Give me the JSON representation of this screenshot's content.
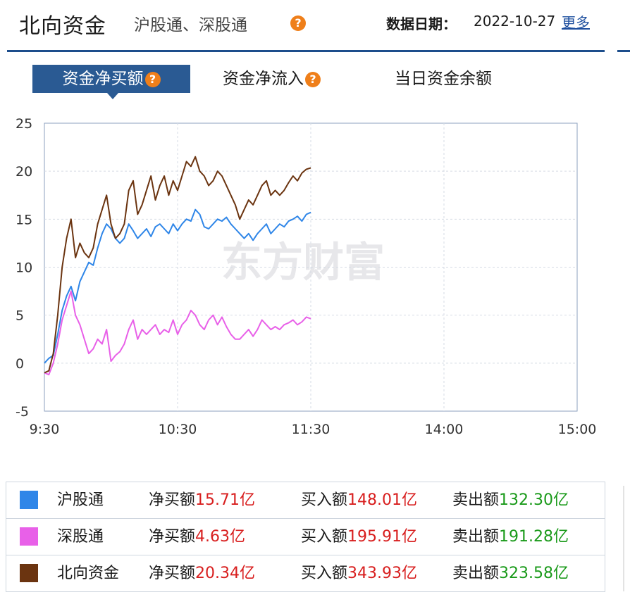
{
  "header": {
    "title": "北向资金",
    "subtitle": "沪股通、深股通",
    "date_label": "数据日期：",
    "date_value": "2022-10-27",
    "more_link": "更多",
    "help_glyph": "?"
  },
  "tabs": [
    {
      "label": "资金净买额",
      "active": true,
      "help": true
    },
    {
      "label": "资金净流入",
      "active": false,
      "help": true
    },
    {
      "label": "当日资金余额",
      "active": false,
      "help": false
    }
  ],
  "watermark": "东方财富",
  "chart_data": {
    "type": "line",
    "title": "",
    "xlabel": "",
    "ylabel": "",
    "x_ticks": [
      "9:30",
      "10:30",
      "11:30",
      "14:00",
      "15:00"
    ],
    "y_ticks": [
      -5,
      0,
      5,
      10,
      15,
      20,
      25
    ],
    "ylim": [
      -5,
      25
    ],
    "grid": true,
    "colors": {
      "沪股通": "#2f86e8",
      "深股通": "#e860e8",
      "北向资金": "#6b3410"
    },
    "series": [
      {
        "name": "沪股通",
        "color": "#2f86e8",
        "times": [
          "9:30",
          "9:32",
          "9:34",
          "9:36",
          "9:38",
          "9:40",
          "9:42",
          "9:44",
          "9:46",
          "9:48",
          "9:50",
          "9:52",
          "9:54",
          "9:56",
          "9:58",
          "10:00",
          "10:02",
          "10:04",
          "10:06",
          "10:08",
          "10:10",
          "10:12",
          "10:14",
          "10:16",
          "10:18",
          "10:20",
          "10:22",
          "10:24",
          "10:26",
          "10:28",
          "10:30",
          "10:32",
          "10:34",
          "10:36",
          "10:38",
          "10:40",
          "10:42",
          "10:44",
          "10:46",
          "10:48",
          "10:50",
          "10:52",
          "10:54",
          "10:56",
          "10:58",
          "11:00",
          "11:02",
          "11:04",
          "11:06",
          "11:08",
          "11:10",
          "11:12",
          "11:14",
          "11:16",
          "11:18",
          "11:20",
          "11:22",
          "11:24",
          "11:26",
          "11:28",
          "11:30"
        ],
        "values": [
          0.0,
          0.5,
          0.8,
          3.0,
          5.5,
          7.0,
          8.0,
          6.5,
          8.5,
          9.5,
          10.5,
          10.2,
          12.0,
          13.5,
          14.5,
          14.0,
          13.0,
          12.5,
          13.0,
          14.5,
          13.8,
          13.0,
          13.5,
          14.0,
          13.2,
          14.2,
          14.5,
          14.0,
          13.5,
          14.5,
          13.8,
          14.5,
          15.0,
          14.8,
          16.0,
          15.5,
          14.2,
          14.0,
          14.5,
          15.0,
          14.8,
          15.2,
          14.5,
          14.0,
          13.5,
          13.0,
          13.5,
          12.8,
          13.5,
          14.0,
          14.5,
          13.5,
          14.0,
          14.5,
          14.2,
          14.8,
          15.0,
          15.3,
          14.8,
          15.5,
          15.71
        ]
      },
      {
        "name": "深股通",
        "color": "#e860e8",
        "times": [
          "9:30",
          "9:32",
          "9:34",
          "9:36",
          "9:38",
          "9:40",
          "9:42",
          "9:44",
          "9:46",
          "9:48",
          "9:50",
          "9:52",
          "9:54",
          "9:56",
          "9:58",
          "10:00",
          "10:02",
          "10:04",
          "10:06",
          "10:08",
          "10:10",
          "10:12",
          "10:14",
          "10:16",
          "10:18",
          "10:20",
          "10:22",
          "10:24",
          "10:26",
          "10:28",
          "10:30",
          "10:32",
          "10:34",
          "10:36",
          "10:38",
          "10:40",
          "10:42",
          "10:44",
          "10:46",
          "10:48",
          "10:50",
          "10:52",
          "10:54",
          "10:56",
          "10:58",
          "11:00",
          "11:02",
          "11:04",
          "11:06",
          "11:08",
          "11:10",
          "11:12",
          "11:14",
          "11:16",
          "11:18",
          "11:20",
          "11:22",
          "11:24",
          "11:26",
          "11:28",
          "11:30"
        ],
        "values": [
          -1.0,
          -1.2,
          0.0,
          2.0,
          4.5,
          6.0,
          7.5,
          5.0,
          4.0,
          2.5,
          1.0,
          1.5,
          2.5,
          2.0,
          3.5,
          0.2,
          0.8,
          1.2,
          2.0,
          3.5,
          4.5,
          2.5,
          3.5,
          3.0,
          3.5,
          4.0,
          3.0,
          3.5,
          3.2,
          4.5,
          3.0,
          4.0,
          4.5,
          5.5,
          5.0,
          4.0,
          3.5,
          4.5,
          5.0,
          4.0,
          4.8,
          3.8,
          3.0,
          2.5,
          2.5,
          3.0,
          3.5,
          2.8,
          3.5,
          4.5,
          4.0,
          3.5,
          3.8,
          3.5,
          4.0,
          4.2,
          4.5,
          4.0,
          4.3,
          4.8,
          4.63
        ]
      },
      {
        "name": "北向资金",
        "color": "#6b3410",
        "times": [
          "9:30",
          "9:32",
          "9:34",
          "9:36",
          "9:38",
          "9:40",
          "9:42",
          "9:44",
          "9:46",
          "9:48",
          "9:50",
          "9:52",
          "9:54",
          "9:56",
          "9:58",
          "10:00",
          "10:02",
          "10:04",
          "10:06",
          "10:08",
          "10:10",
          "10:12",
          "10:14",
          "10:16",
          "10:18",
          "10:20",
          "10:22",
          "10:24",
          "10:26",
          "10:28",
          "10:30",
          "10:32",
          "10:34",
          "10:36",
          "10:38",
          "10:40",
          "10:42",
          "10:44",
          "10:46",
          "10:48",
          "10:50",
          "10:52",
          "10:54",
          "10:56",
          "10:58",
          "11:00",
          "11:02",
          "11:04",
          "11:06",
          "11:08",
          "11:10",
          "11:12",
          "11:14",
          "11:16",
          "11:18",
          "11:20",
          "11:22",
          "11:24",
          "11:26",
          "11:28",
          "11:30"
        ],
        "values": [
          -1.0,
          -0.8,
          1.0,
          5.0,
          10.0,
          13.0,
          15.0,
          11.0,
          12.5,
          11.5,
          11.0,
          12.0,
          14.5,
          16.0,
          17.5,
          14.5,
          13.0,
          13.5,
          14.5,
          18.0,
          19.0,
          15.5,
          16.5,
          18.0,
          19.5,
          17.0,
          18.5,
          19.5,
          17.5,
          19.0,
          18.0,
          19.5,
          21.0,
          20.5,
          21.5,
          20.0,
          19.5,
          18.5,
          19.0,
          20.0,
          19.5,
          18.5,
          17.5,
          16.5,
          15.0,
          16.0,
          17.0,
          16.5,
          17.5,
          18.5,
          19.0,
          17.5,
          18.0,
          17.5,
          18.0,
          18.8,
          19.5,
          19.0,
          19.8,
          20.2,
          20.34
        ]
      }
    ]
  },
  "summary": {
    "rows": [
      {
        "name": "沪股通",
        "color": "#2f86e8",
        "net_label": "净买额",
        "net": "15.71亿",
        "buy_label": "买入额",
        "buy": "148.01亿",
        "sell_label": "卖出额",
        "sell": "132.30亿"
      },
      {
        "name": "深股通",
        "color": "#e860e8",
        "net_label": "净买额",
        "net": "4.63亿",
        "buy_label": "买入额",
        "buy": "195.91亿",
        "sell_label": "卖出额",
        "sell": "191.28亿"
      },
      {
        "name": "北向资金",
        "color": "#6b3410",
        "net_label": "净买额",
        "net": "20.34亿",
        "buy_label": "买入额",
        "buy": "343.93亿",
        "sell_label": "卖出额",
        "sell": "323.58亿"
      }
    ]
  }
}
